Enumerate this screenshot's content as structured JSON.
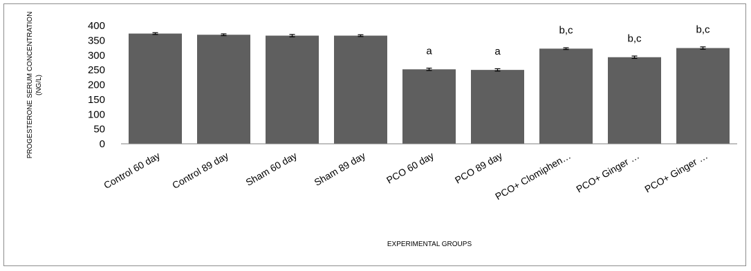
{
  "chart_data": {
    "type": "bar",
    "title": "",
    "xlabel": "EXPERIMENTAL GROUPS",
    "ylabel": "PROGESTERONE SERUM CONCENTRATION (NG/L)",
    "ylabel_lines": [
      "PROGESTERONE SERUM CONCENTRATION",
      "(NG/L)"
    ],
    "ylim": [
      0,
      400
    ],
    "yticks": [
      0,
      50,
      100,
      150,
      200,
      250,
      300,
      350,
      400
    ],
    "grid": false,
    "bar_color": "#5f5f5f",
    "categories": [
      "Control 60 day",
      "Control 89 day",
      "Sham 60 day",
      "Sham 89 day",
      "PCO 60 day",
      "PCO 89  day",
      "PCO+ Clomiphen…",
      "PCO+ Ginger …",
      "PCO+ Ginger …"
    ],
    "values": [
      373,
      369,
      366,
      366,
      252,
      250,
      322,
      293,
      324
    ],
    "errors": [
      3,
      3,
      4,
      3,
      4,
      4,
      3,
      4,
      4
    ],
    "annotations": [
      "",
      "",
      "",
      "",
      "a",
      "a",
      "b,c",
      "b,c",
      "b,c"
    ]
  }
}
